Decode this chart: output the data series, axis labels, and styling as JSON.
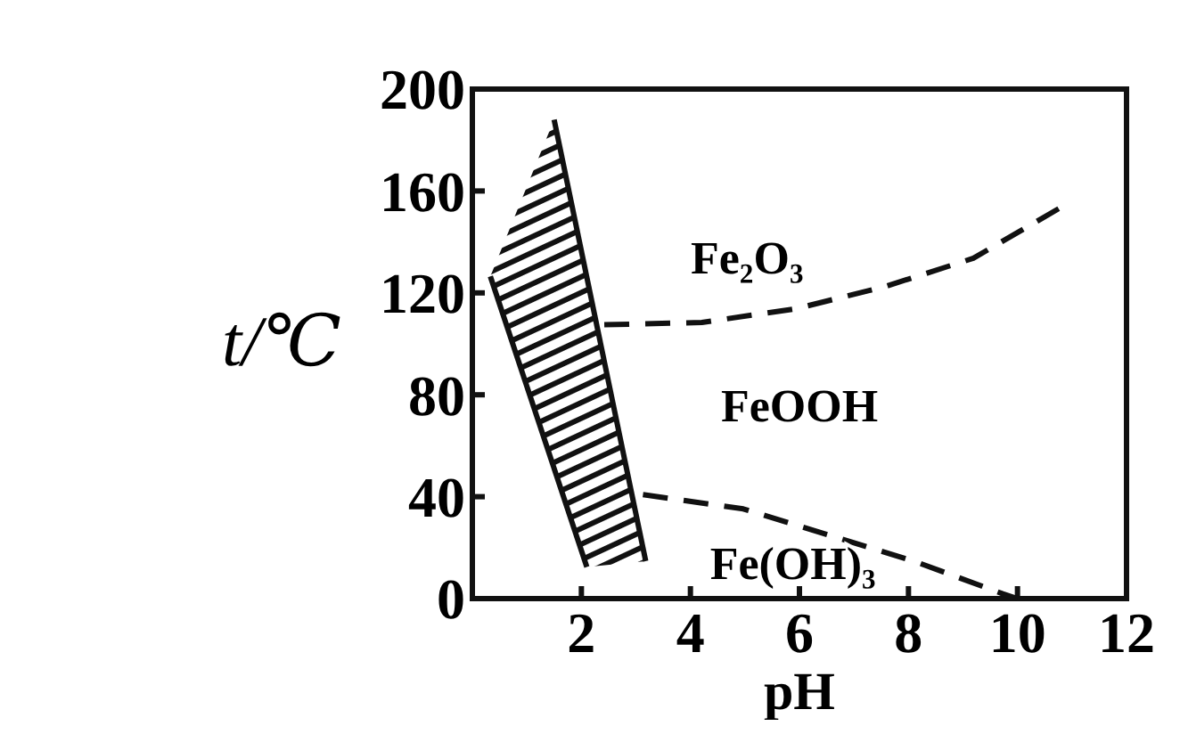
{
  "chart_data": {
    "type": "line",
    "xlabel": "pH",
    "ylabel": "t/℃",
    "xlim": [
      0,
      12
    ],
    "ylim": [
      0,
      200
    ],
    "xticks": [
      2,
      4,
      6,
      8,
      10,
      12
    ],
    "yticks": [
      0,
      40,
      80,
      120,
      160,
      200
    ],
    "grid": false,
    "marker": "none",
    "series": [
      {
        "color": "#111111",
        "line_style": "solid",
        "x": [
          0.33,
          2.1
        ],
        "values": [
          126.5,
          12.4
        ]
      },
      {
        "color": "#111111",
        "line_style": "solid",
        "x": [
          1.5,
          3.18
        ],
        "values": [
          188,
          14.7
        ]
      },
      {
        "color": "#111111",
        "line_style": "dashed",
        "x": [
          2.42,
          4.21,
          5.94,
          7.56,
          9.19,
          10.87
        ],
        "values": [
          107.5,
          108.4,
          113.8,
          122.4,
          133.6,
          154.5
        ]
      },
      {
        "color": "#111111",
        "line_style": "dashed",
        "x": [
          3.13,
          4.97,
          8.1,
          9.73,
          10.0
        ],
        "values": [
          40.8,
          35.2,
          14.7,
          1.9,
          0
        ]
      }
    ],
    "annotations": [
      "Fe₂O₃",
      "FeOOH",
      "Fe(OH)₃"
    ]
  }
}
